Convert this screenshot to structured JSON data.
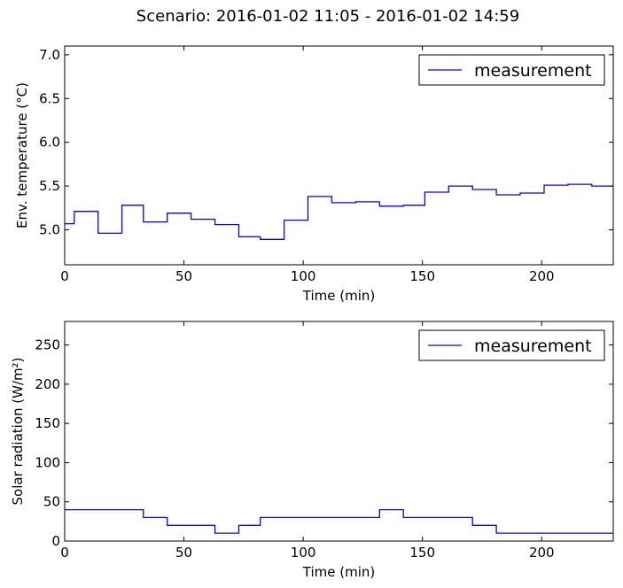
{
  "figure": {
    "title": "Scenario: 2016-01-02 11:05 - 2016-01-02 14:59"
  },
  "chart_data": [
    {
      "type": "line",
      "step": "post",
      "xlabel": "Time (min)",
      "ylabel": "Env. temperature (°C)",
      "xlim": [
        0,
        230
      ],
      "ylim": [
        4.6,
        7.1
      ],
      "xticks": [
        0,
        50,
        100,
        150,
        200
      ],
      "xtick_labels": [
        "0",
        "50",
        "100",
        "150",
        "200"
      ],
      "yticks": [
        5.0,
        5.5,
        6.0,
        6.5,
        7.0
      ],
      "ytick_labels": [
        "5.0",
        "5.5",
        "6.0",
        "6.5",
        "7.0"
      ],
      "legend": {
        "position": "top-right",
        "entries": [
          "measurement"
        ]
      },
      "grid": false,
      "series": [
        {
          "name": "measurement",
          "color": "#0000ff",
          "x": [
            0,
            4,
            14,
            24,
            33,
            43,
            53,
            63,
            73,
            82,
            92,
            102,
            112,
            122,
            132,
            142,
            151,
            161,
            171,
            181,
            191,
            201,
            211,
            221,
            230
          ],
          "y": [
            5.07,
            5.21,
            4.96,
            5.28,
            5.09,
            5.19,
            5.12,
            5.06,
            4.92,
            4.89,
            5.11,
            5.38,
            5.31,
            5.32,
            5.27,
            5.28,
            5.43,
            5.5,
            5.46,
            5.4,
            5.42,
            5.51,
            5.52,
            5.5,
            5.5
          ]
        }
      ]
    },
    {
      "type": "line",
      "step": "post",
      "xlabel": "Time (min)",
      "ylabel": "Solar radiation (W/m²)",
      "xlim": [
        0,
        230
      ],
      "ylim": [
        0,
        280
      ],
      "xticks": [
        0,
        50,
        100,
        150,
        200
      ],
      "xtick_labels": [
        "0",
        "50",
        "100",
        "150",
        "200"
      ],
      "yticks": [
        0,
        50,
        100,
        150,
        200,
        250
      ],
      "ytick_labels": [
        "0",
        "50",
        "100",
        "150",
        "200",
        "250"
      ],
      "legend": {
        "position": "top-right",
        "entries": [
          "measurement"
        ]
      },
      "grid": false,
      "series": [
        {
          "name": "measurement",
          "color": "#0000ff",
          "x": [
            0,
            33,
            43,
            63,
            73,
            82,
            132,
            142,
            171,
            181,
            230
          ],
          "y": [
            40,
            30,
            20,
            10,
            20,
            30,
            40,
            30,
            20,
            10,
            10
          ]
        }
      ]
    }
  ]
}
